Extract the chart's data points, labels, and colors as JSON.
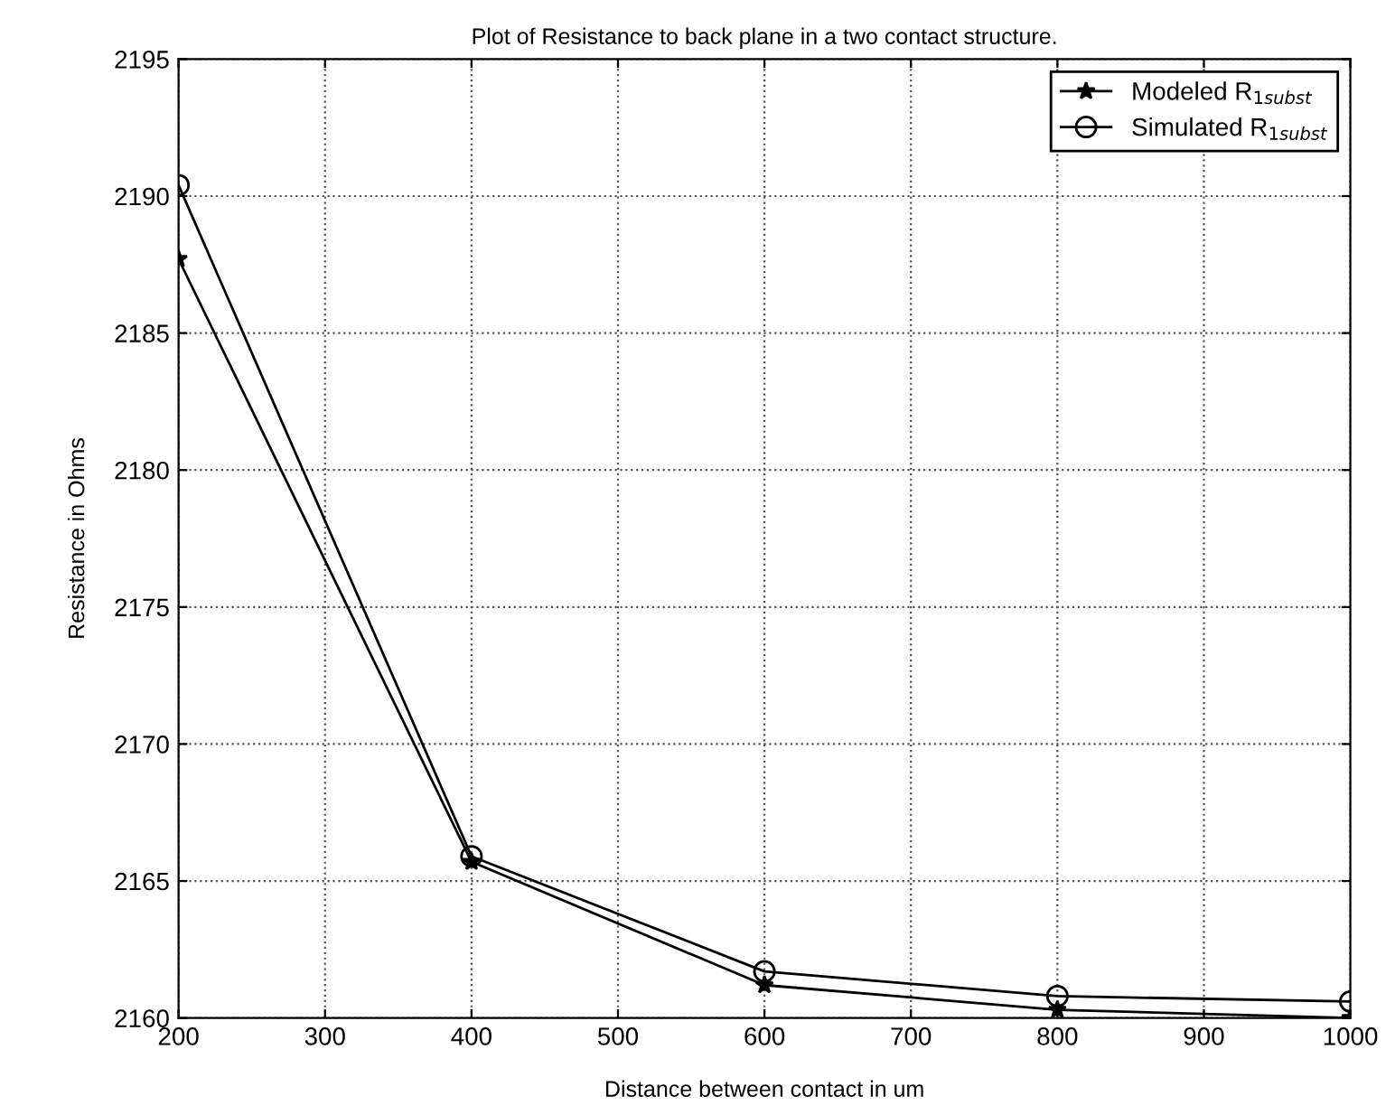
{
  "chart_data": {
    "type": "line",
    "title": "Plot of Resistance to back plane in a two contact structure.",
    "xlabel": "Distance between contact in um",
    "ylabel": "Resistance in Ohms",
    "x": [
      200,
      400,
      600,
      800,
      1000
    ],
    "series": [
      {
        "name": "Modeled R$_{1subst}$",
        "color": "#000000",
        "marker": "star",
        "values": [
          2187.7,
          2165.7,
          2161.2,
          2160.3,
          2160.0
        ]
      },
      {
        "name": "Simulated R$_{1subst}$",
        "color": "#000000",
        "marker": "circle",
        "values": [
          2190.4,
          2165.9,
          2161.7,
          2160.8,
          2160.6
        ]
      }
    ],
    "xlim": [
      200,
      1000
    ],
    "xticks": [
      200,
      300,
      400,
      500,
      600,
      700,
      800,
      900,
      1000
    ],
    "ylim": [
      2160,
      2195
    ],
    "yticks": [
      2160,
      2165,
      2170,
      2175,
      2180,
      2185,
      2190,
      2195
    ],
    "grid": true,
    "legend": "top right",
    "line_style": "solid"
  }
}
